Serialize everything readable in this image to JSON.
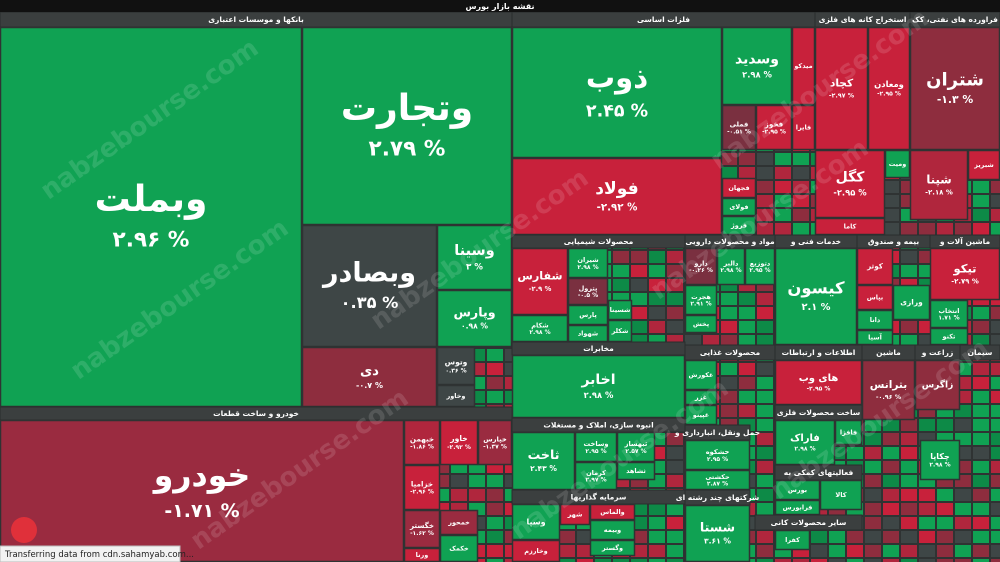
{
  "title": "نقشه بازار بورس",
  "status": "Transferring data from cdn.sahamyab.com...",
  "watermark": "nabzebourse.com",
  "sectors": [
    {
      "name": "بانکها و موسسات اعتباری",
      "tiles": [
        {
          "name": "وبملت",
          "change": "۲.۹۶ %",
          "color": "#10a253"
        },
        {
          "name": "وتجارت",
          "change": "۲.۷۹ %",
          "color": "#10a253"
        },
        {
          "name": "وبصادر",
          "change": "۰.۳۵ %",
          "color": "#3e4646"
        },
        {
          "name": "وسینا",
          "change": "۳ %",
          "color": "#10a253"
        },
        {
          "name": "وپارس",
          "change": "۰.۹۸ %",
          "color": "#10a253"
        },
        {
          "name": "دی",
          "change": "-۰.۷ %",
          "color": "#8e2d3e"
        },
        {
          "name": "وتوس",
          "change": "۰.۳۶ %",
          "color": "#3e4646"
        },
        {
          "name": "وخاور",
          "color": "#3e4646"
        }
      ]
    },
    {
      "name": "خودرو و ساخت قطعات",
      "tiles": [
        {
          "name": "خودرو",
          "change": "-۱.۷۱ %",
          "color": "#9a2b40"
        },
        {
          "name": "خبهمن",
          "change": "-۱.۸۶ %",
          "color": "#b0263d"
        },
        {
          "name": "خاور",
          "change": "-۲.۹۲ %",
          "color": "#c8213b"
        },
        {
          "name": "خپارس",
          "change": "-۱.۳۷ %",
          "color": "#9a2b40"
        },
        {
          "name": "خزامیا",
          "change": "-۲.۹۶ %",
          "color": "#c8213b"
        },
        {
          "name": "خگستر",
          "change": "-۱.۶۲ %",
          "color": "#9a2b40"
        },
        {
          "name": "ورنا",
          "color": "#c8213b"
        },
        {
          "name": "خمحور",
          "color": "#9a2b40"
        },
        {
          "name": "خکمک",
          "color": "#10a253"
        }
      ]
    },
    {
      "name": "فلزات اساسی",
      "tiles": [
        {
          "name": "ذوب",
          "change": "۲.۴۵ %",
          "color": "#10a253"
        },
        {
          "name": "فولاد",
          "change": "-۲.۹۲ %",
          "color": "#c8213b"
        },
        {
          "name": "وسدید",
          "change": "۲.۹۸ %",
          "color": "#10a253"
        },
        {
          "name": "میدکو",
          "color": "#c8213b"
        },
        {
          "name": "فملی",
          "change": "-۰.۵۱ %",
          "color": "#7a3040"
        },
        {
          "name": "فخوز",
          "change": "-۲.۹۵ %",
          "color": "#c8213b"
        },
        {
          "name": "فایرا",
          "color": "#c8213b"
        },
        {
          "name": "فجهان",
          "color": "#c8213b"
        },
        {
          "name": "فولای",
          "color": "#10a253"
        },
        {
          "name": "فروژ",
          "color": "#10a253"
        }
      ]
    },
    {
      "name": "استخراج کانه های فلزی",
      "tiles": [
        {
          "name": "کچاد",
          "change": "-۲.۹۷ %",
          "color": "#c8213b"
        },
        {
          "name": "ومعادن",
          "change": "-۲.۹۵ %",
          "color": "#c8213b"
        },
        {
          "name": "کگل",
          "change": "-۲.۹۵ %",
          "color": "#c8213b"
        },
        {
          "name": "کاما",
          "color": "#c8213b"
        },
        {
          "name": "ومیت",
          "color": "#10a253"
        }
      ]
    },
    {
      "name": "فراورده های نفتی، کک",
      "tiles": [
        {
          "name": "شتران",
          "change": "-۱.۳ %",
          "color": "#8e2d3e"
        },
        {
          "name": "شپنا",
          "change": "-۲.۱۸ %",
          "color": "#b0263d"
        },
        {
          "name": "شبریز",
          "color": "#c8213b"
        }
      ]
    },
    {
      "name": "محصولات شیمیایی",
      "tiles": [
        {
          "name": "شفارس",
          "change": "-۲.۹ %",
          "color": "#c8213b"
        },
        {
          "name": "شیران",
          "change": "۲.۹۸ %",
          "color": "#10a253"
        },
        {
          "name": "پترول",
          "change": "-۰.۵ %",
          "color": "#7a3040"
        },
        {
          "name": "پارس",
          "color": "#10a253"
        },
        {
          "name": "شکام",
          "change": "۲.۹۸ %",
          "color": "#10a253"
        },
        {
          "name": "شهواد",
          "color": "#10a253"
        },
        {
          "name": "شسینا",
          "color": "#10a253"
        },
        {
          "name": "شکلر",
          "color": "#10a253"
        }
      ]
    },
    {
      "name": "مواد و محصولات دارویی",
      "tiles": [
        {
          "name": "دارو",
          "change": "-۰.۲۶ %",
          "color": "#7a3040"
        },
        {
          "name": "دالبر",
          "change": "۲.۹۸ %",
          "color": "#10a253"
        },
        {
          "name": "دتوزیع",
          "change": "۲.۹۵ %",
          "color": "#10a253"
        },
        {
          "name": "هجرت",
          "change": "۲.۹۱ %",
          "color": "#10a253"
        },
        {
          "name": "پخش",
          "color": "#10a253"
        }
      ]
    },
    {
      "name": "خدمات فنی و",
      "tiles": [
        {
          "name": "کیسون",
          "change": "۲.۱ %",
          "color": "#10a253"
        }
      ]
    },
    {
      "name": "بیمه و صندوق",
      "tiles": [
        {
          "name": "کوثر",
          "color": "#c8213b"
        },
        {
          "name": "بپاس",
          "color": "#c8213b"
        },
        {
          "name": "ورازی",
          "color": "#10a253"
        },
        {
          "name": "دانا",
          "color": "#10a253"
        },
        {
          "name": "آسیا",
          "color": "#10a253"
        }
      ]
    },
    {
      "name": "ماشین آلات و",
      "tiles": [
        {
          "name": "تیکو",
          "change": "-۲.۷۹ %",
          "color": "#c8213b"
        },
        {
          "name": "انتخاب",
          "change": "۱.۷۱ %",
          "color": "#10a253"
        },
        {
          "name": "تکنو",
          "color": "#10a253"
        }
      ]
    },
    {
      "name": "مخابرات",
      "tiles": [
        {
          "name": "اخابر",
          "change": "۲.۹۸ %",
          "color": "#10a253"
        }
      ]
    },
    {
      "name": "انبوه سازی، املاک و مستغلات",
      "tiles": [
        {
          "name": "ثاخت",
          "change": "۲.۴۳ %",
          "color": "#10a253"
        },
        {
          "name": "وساخت",
          "change": "۲.۹۵ %",
          "color": "#10a253"
        },
        {
          "name": "ثبهساز",
          "change": "۲.۵۷ %",
          "color": "#10a253"
        },
        {
          "name": "کرمان",
          "change": "۲.۹۷ %",
          "color": "#10a253"
        },
        {
          "name": "ثشاهد",
          "color": "#10a253"
        }
      ]
    },
    {
      "name": "سرمایه گذاریها",
      "tiles": [
        {
          "name": "وسپا",
          "color": "#10a253"
        },
        {
          "name": "شهر",
          "color": "#c8213b"
        },
        {
          "name": "والماس",
          "color": "#c8213b"
        },
        {
          "name": "وبیمه",
          "color": "#10a253"
        },
        {
          "name": "وگستر",
          "color": "#10a253"
        },
        {
          "name": "وخارزم",
          "color": "#c8213b"
        }
      ]
    },
    {
      "name": "محصولات غذایی",
      "tiles": [
        {
          "name": "غکورش",
          "color": "#10a253"
        },
        {
          "name": "غزر",
          "color": "#10a253"
        },
        {
          "name": "غپینو",
          "color": "#10a253"
        }
      ]
    },
    {
      "name": "حمل ونقل، انبارداری و",
      "tiles": [
        {
          "name": "حشکوه",
          "change": "۲.۹۵ %",
          "color": "#10a253"
        },
        {
          "name": "حکشتی",
          "change": "۲.۸۷ %",
          "color": "#10a253"
        }
      ]
    },
    {
      "name": "شرکتهای چند رشته ای",
      "tiles": [
        {
          "name": "شستا",
          "change": "۳.۶۱ %",
          "color": "#10a253"
        }
      ]
    },
    {
      "name": "اطلاعات و ارتباطات",
      "tiles": [
        {
          "name": "های وب",
          "change": "-۲.۹۵ %",
          "color": "#c8213b"
        }
      ]
    },
    {
      "name": "ساخت محصولات فلزی",
      "tiles": [
        {
          "name": "فاراک",
          "change": "۲.۹۸ %",
          "color": "#10a253"
        },
        {
          "name": "فافزا",
          "color": "#10a253"
        }
      ]
    },
    {
      "name": "فعالیتهای کمکی به",
      "tiles": [
        {
          "name": "بورس",
          "color": "#10a253"
        },
        {
          "name": "فرابورس",
          "color": "#10a253"
        },
        {
          "name": "کالا",
          "color": "#10a253"
        }
      ]
    },
    {
      "name": "سایر محصولات کانی",
      "tiles": [
        {
          "name": "کفرا",
          "color": "#10a253"
        }
      ]
    },
    {
      "name": "ماشین",
      "tiles": [
        {
          "name": "بترانس",
          "change": "-۰.۹۶ %",
          "color": "#8e2d3e"
        }
      ]
    },
    {
      "name": "زراعت و",
      "tiles": [
        {
          "name": "زاگرس",
          "color": "#8e2d3e"
        }
      ]
    },
    {
      "name": "سیمان",
      "tiles": [
        {
          "name": "چکاپا",
          "change": "۲.۹۸ %",
          "color": "#10a253"
        }
      ]
    }
  ]
}
